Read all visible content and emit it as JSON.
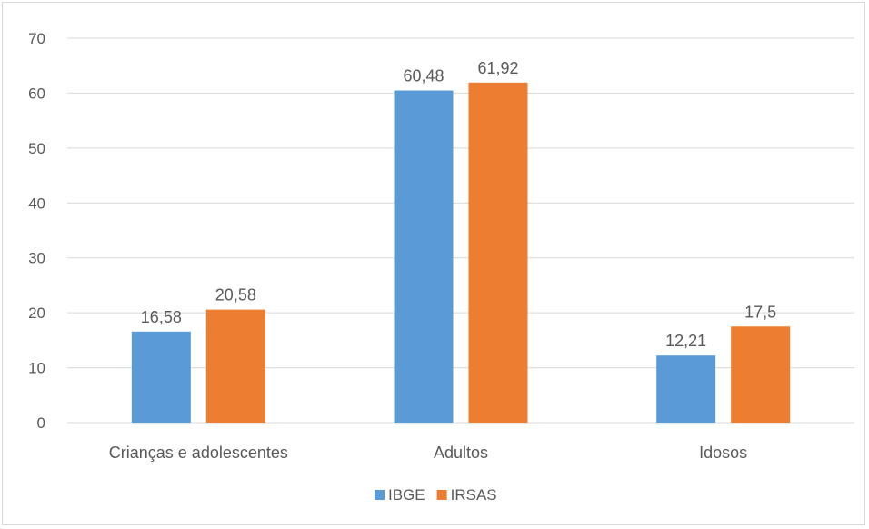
{
  "chart_data": {
    "type": "bar",
    "categories": [
      "Crianças e adolescentes",
      "Adultos",
      "Idosos"
    ],
    "series": [
      {
        "name": "IBGE",
        "values": [
          16.58,
          60.48,
          12.21
        ],
        "labels": [
          "16,58",
          "60,48",
          "12,21"
        ],
        "color": "#5B9BD5"
      },
      {
        "name": "IRSAS",
        "values": [
          20.58,
          61.92,
          17.5
        ],
        "labels": [
          "20,58",
          "61,92",
          "17,5"
        ],
        "color": "#ED7D31"
      }
    ],
    "yticks": [
      "0",
      "10",
      "20",
      "30",
      "40",
      "50",
      "60",
      "70"
    ],
    "ylim": [
      0,
      70
    ],
    "grid": true,
    "legend": "bottom"
  }
}
